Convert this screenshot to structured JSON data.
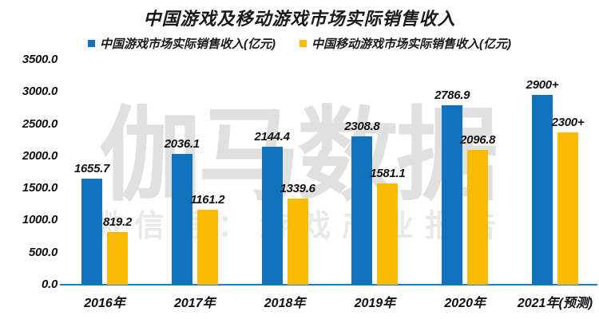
{
  "title": "中国游戏及移动游戏市场实际销售收入",
  "watermark": {
    "main": "伽马数据",
    "sub": "微信号：游戏产业报告"
  },
  "colors": {
    "series_blue": "#0F72BA",
    "series_gold": "#FBBB05",
    "axis_line": "#1B7FC4",
    "text": "#1A1A1A",
    "watermark_main": "#E0E0E0",
    "watermark_sub": "#E9E9E9",
    "background": "#FFFFFF"
  },
  "chart_data": {
    "type": "bar",
    "title": "中国游戏及移动游戏市场实际销售收入",
    "categories": [
      "2016年",
      "2017年",
      "2018年",
      "2019年",
      "2020年",
      "2021年(预测)"
    ],
    "series": [
      {
        "name": "中国游戏市场实际销售收入(亿元)",
        "color": "#0F72BA",
        "values": [
          1655.7,
          2036.1,
          2144.4,
          2308.8,
          2786.9,
          2950
        ],
        "value_labels": [
          "1655.7",
          "2036.1",
          "2144.4",
          "2308.8",
          "2786.9",
          "2900+"
        ]
      },
      {
        "name": "中国移动游戏市场实际销售收入(亿元)",
        "color": "#FBBB05",
        "values": [
          819.2,
          1161.2,
          1339.6,
          1581.1,
          2096.8,
          2370
        ],
        "value_labels": [
          "819.2",
          "1161.2",
          "1339.6",
          "1581.1",
          "2096.8",
          "2300+"
        ]
      }
    ],
    "xlabel": "",
    "ylabel": "",
    "ylim": [
      0,
      3500
    ],
    "ytick_step": 500,
    "ytick_labels": [
      "3500.0",
      "3000.0",
      "2500.0",
      "2000.0",
      "1500.0",
      "1000.0",
      "500.0",
      "0.0"
    ],
    "grid": false,
    "legend_position": "top",
    "value_labels_shown": true
  }
}
